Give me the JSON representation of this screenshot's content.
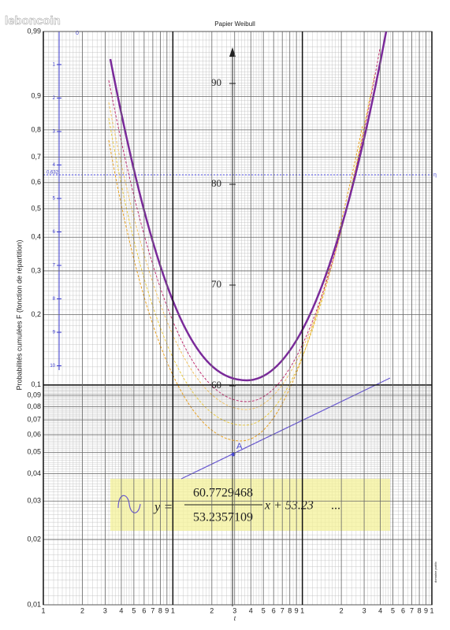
{
  "watermark": "leboncoin",
  "title": "Papier Weibull",
  "top_marker": "0",
  "y_axis_label": "Probabilités cumulées F (fonction de répartition)",
  "x_axis_label": "t",
  "y_ticks": [
    {
      "value": 0.99,
      "label": "0,99"
    },
    {
      "value": 0.9,
      "label": "0,9"
    },
    {
      "value": 0.8,
      "label": "0,8"
    },
    {
      "value": 0.7,
      "label": "0,7"
    },
    {
      "value": 0.6,
      "label": "0,6"
    },
    {
      "value": 0.5,
      "label": "0,5"
    },
    {
      "value": 0.4,
      "label": "0,4"
    },
    {
      "value": 0.3,
      "label": "0,3"
    },
    {
      "value": 0.2,
      "label": "0,2"
    },
    {
      "value": 0.1,
      "label": "0,1"
    },
    {
      "value": 0.09,
      "label": "0,09"
    },
    {
      "value": 0.08,
      "label": "0,08"
    },
    {
      "value": 0.07,
      "label": "0,07"
    },
    {
      "value": 0.06,
      "label": "0,06"
    },
    {
      "value": 0.05,
      "label": "0,05"
    },
    {
      "value": 0.04,
      "label": "0,04"
    },
    {
      "value": 0.03,
      "label": "0,03"
    },
    {
      "value": 0.02,
      "label": "0,02"
    },
    {
      "value": 0.01,
      "label": "0,01"
    }
  ],
  "x_ticks": [
    1,
    2,
    3,
    4,
    5,
    6,
    7,
    8,
    9,
    {
      "value": 10,
      "label": "1"
    },
    {
      "value": 20,
      "label": "2"
    },
    {
      "value": 30,
      "label": "3"
    },
    {
      "value": 40,
      "label": "4"
    },
    {
      "value": 50,
      "label": "5"
    },
    {
      "value": 60,
      "label": "6"
    },
    {
      "value": 70,
      "label": "7"
    },
    {
      "value": 80,
      "label": "8"
    },
    {
      "value": 90,
      "label": "9"
    },
    {
      "value": 100,
      "label": "1"
    },
    {
      "value": 200,
      "label": "2"
    },
    {
      "value": 300,
      "label": "3"
    },
    {
      "value": 400,
      "label": "4"
    },
    {
      "value": 500,
      "label": "5"
    },
    {
      "value": 600,
      "label": "6"
    },
    {
      "value": 700,
      "label": "7"
    },
    {
      "value": 800,
      "label": "8"
    },
    {
      "value": 900,
      "label": "9"
    },
    {
      "value": 1000,
      "label": "1"
    }
  ],
  "left_scale_labels": [
    "1",
    "2",
    "3",
    "4",
    "5",
    "6",
    "7",
    "8",
    "9",
    "10"
  ],
  "inner_scale_labels": [
    "90",
    "80",
    "70",
    "60"
  ],
  "marker_label": "0,632",
  "eta_label": "η",
  "point_label": "A",
  "formula": {
    "lhs": "y =",
    "numerator": "60.7729468",
    "denominator": "53.2357109",
    "tail": "x + 53.23",
    "ellipsis": "..."
  },
  "footer_note": "domaine public"
}
